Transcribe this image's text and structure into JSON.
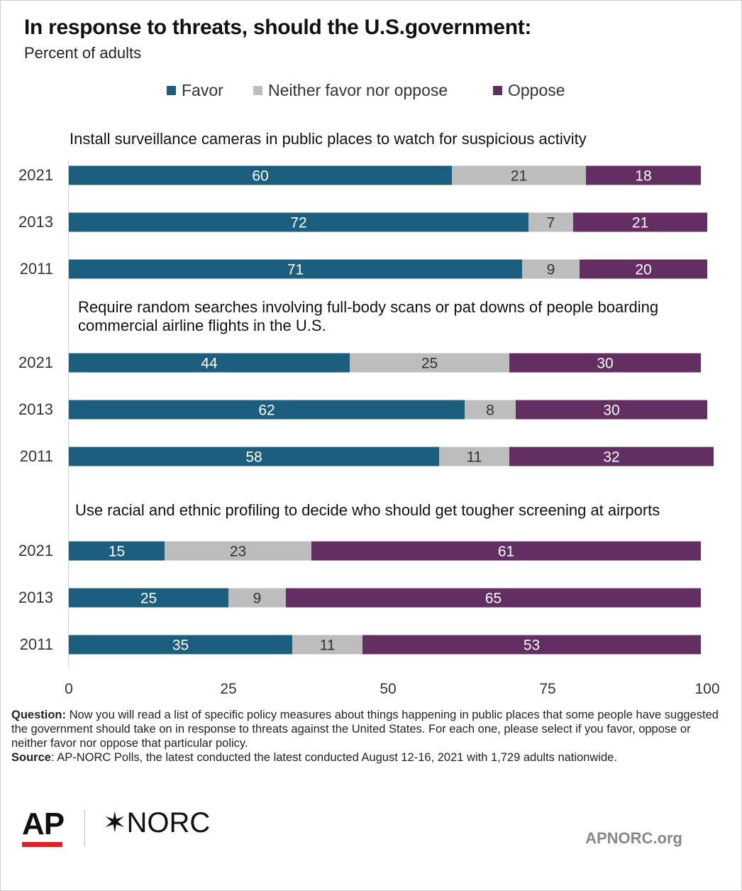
{
  "title": "In response to threats, should the U.S.government:",
  "subtitle": "Percent of adults",
  "legend": [
    {
      "label": "Favor",
      "color": "#1b5e7e"
    },
    {
      "label": "Neither favor nor oppose",
      "color": "#bdbdbd"
    },
    {
      "label": "Oppose",
      "color": "#632f62"
    }
  ],
  "chart_data": {
    "type": "bar",
    "orientation": "horizontal",
    "stacked": true,
    "xlim": [
      0,
      100
    ],
    "x_ticks": [
      0,
      25,
      50,
      75,
      100
    ],
    "series_names": [
      "Favor",
      "Neither favor nor oppose",
      "Oppose"
    ],
    "groups": [
      {
        "title": [
          "Install surveillance cameras in public places to watch for suspicious activity"
        ],
        "rows": [
          {
            "year": "2021",
            "values": [
              60,
              21,
              18
            ]
          },
          {
            "year": "2013",
            "values": [
              72,
              7,
              21
            ]
          },
          {
            "year": "2011",
            "values": [
              71,
              9,
              20
            ]
          }
        ]
      },
      {
        "title": [
          "Require random searches involving full-body scans or pat downs of people boarding",
          "commercial airline flights in the U.S."
        ],
        "rows": [
          {
            "year": "2021",
            "values": [
              44,
              25,
              30
            ]
          },
          {
            "year": "2013",
            "values": [
              62,
              8,
              30
            ]
          },
          {
            "year": "2011",
            "values": [
              58,
              11,
              32
            ]
          }
        ]
      },
      {
        "title": [
          "Use racial and ethnic profiling to decide who should get tougher screening at airports"
        ],
        "rows": [
          {
            "year": "2021",
            "values": [
              15,
              23,
              61
            ]
          },
          {
            "year": "2013",
            "values": [
              25,
              9,
              65
            ]
          },
          {
            "year": "2011",
            "values": [
              35,
              11,
              53
            ]
          }
        ]
      }
    ]
  },
  "notes": {
    "question_label": "Question:",
    "question_text": " Now you will read a list of specific policy measures about things happening in public places that some people have suggested the government should take on in response to threats against the United States. For each one, please select if you favor, oppose or neither favor nor oppose that particular policy.",
    "source_label": "Source",
    "source_text": ":  AP-NORC Polls, the latest conducted the latest conducted August 12-16, 2021 with 1,729 adults nationwide."
  },
  "logos": {
    "ap": "AP",
    "norc": "✶NORC"
  },
  "site": "APNORC.org"
}
